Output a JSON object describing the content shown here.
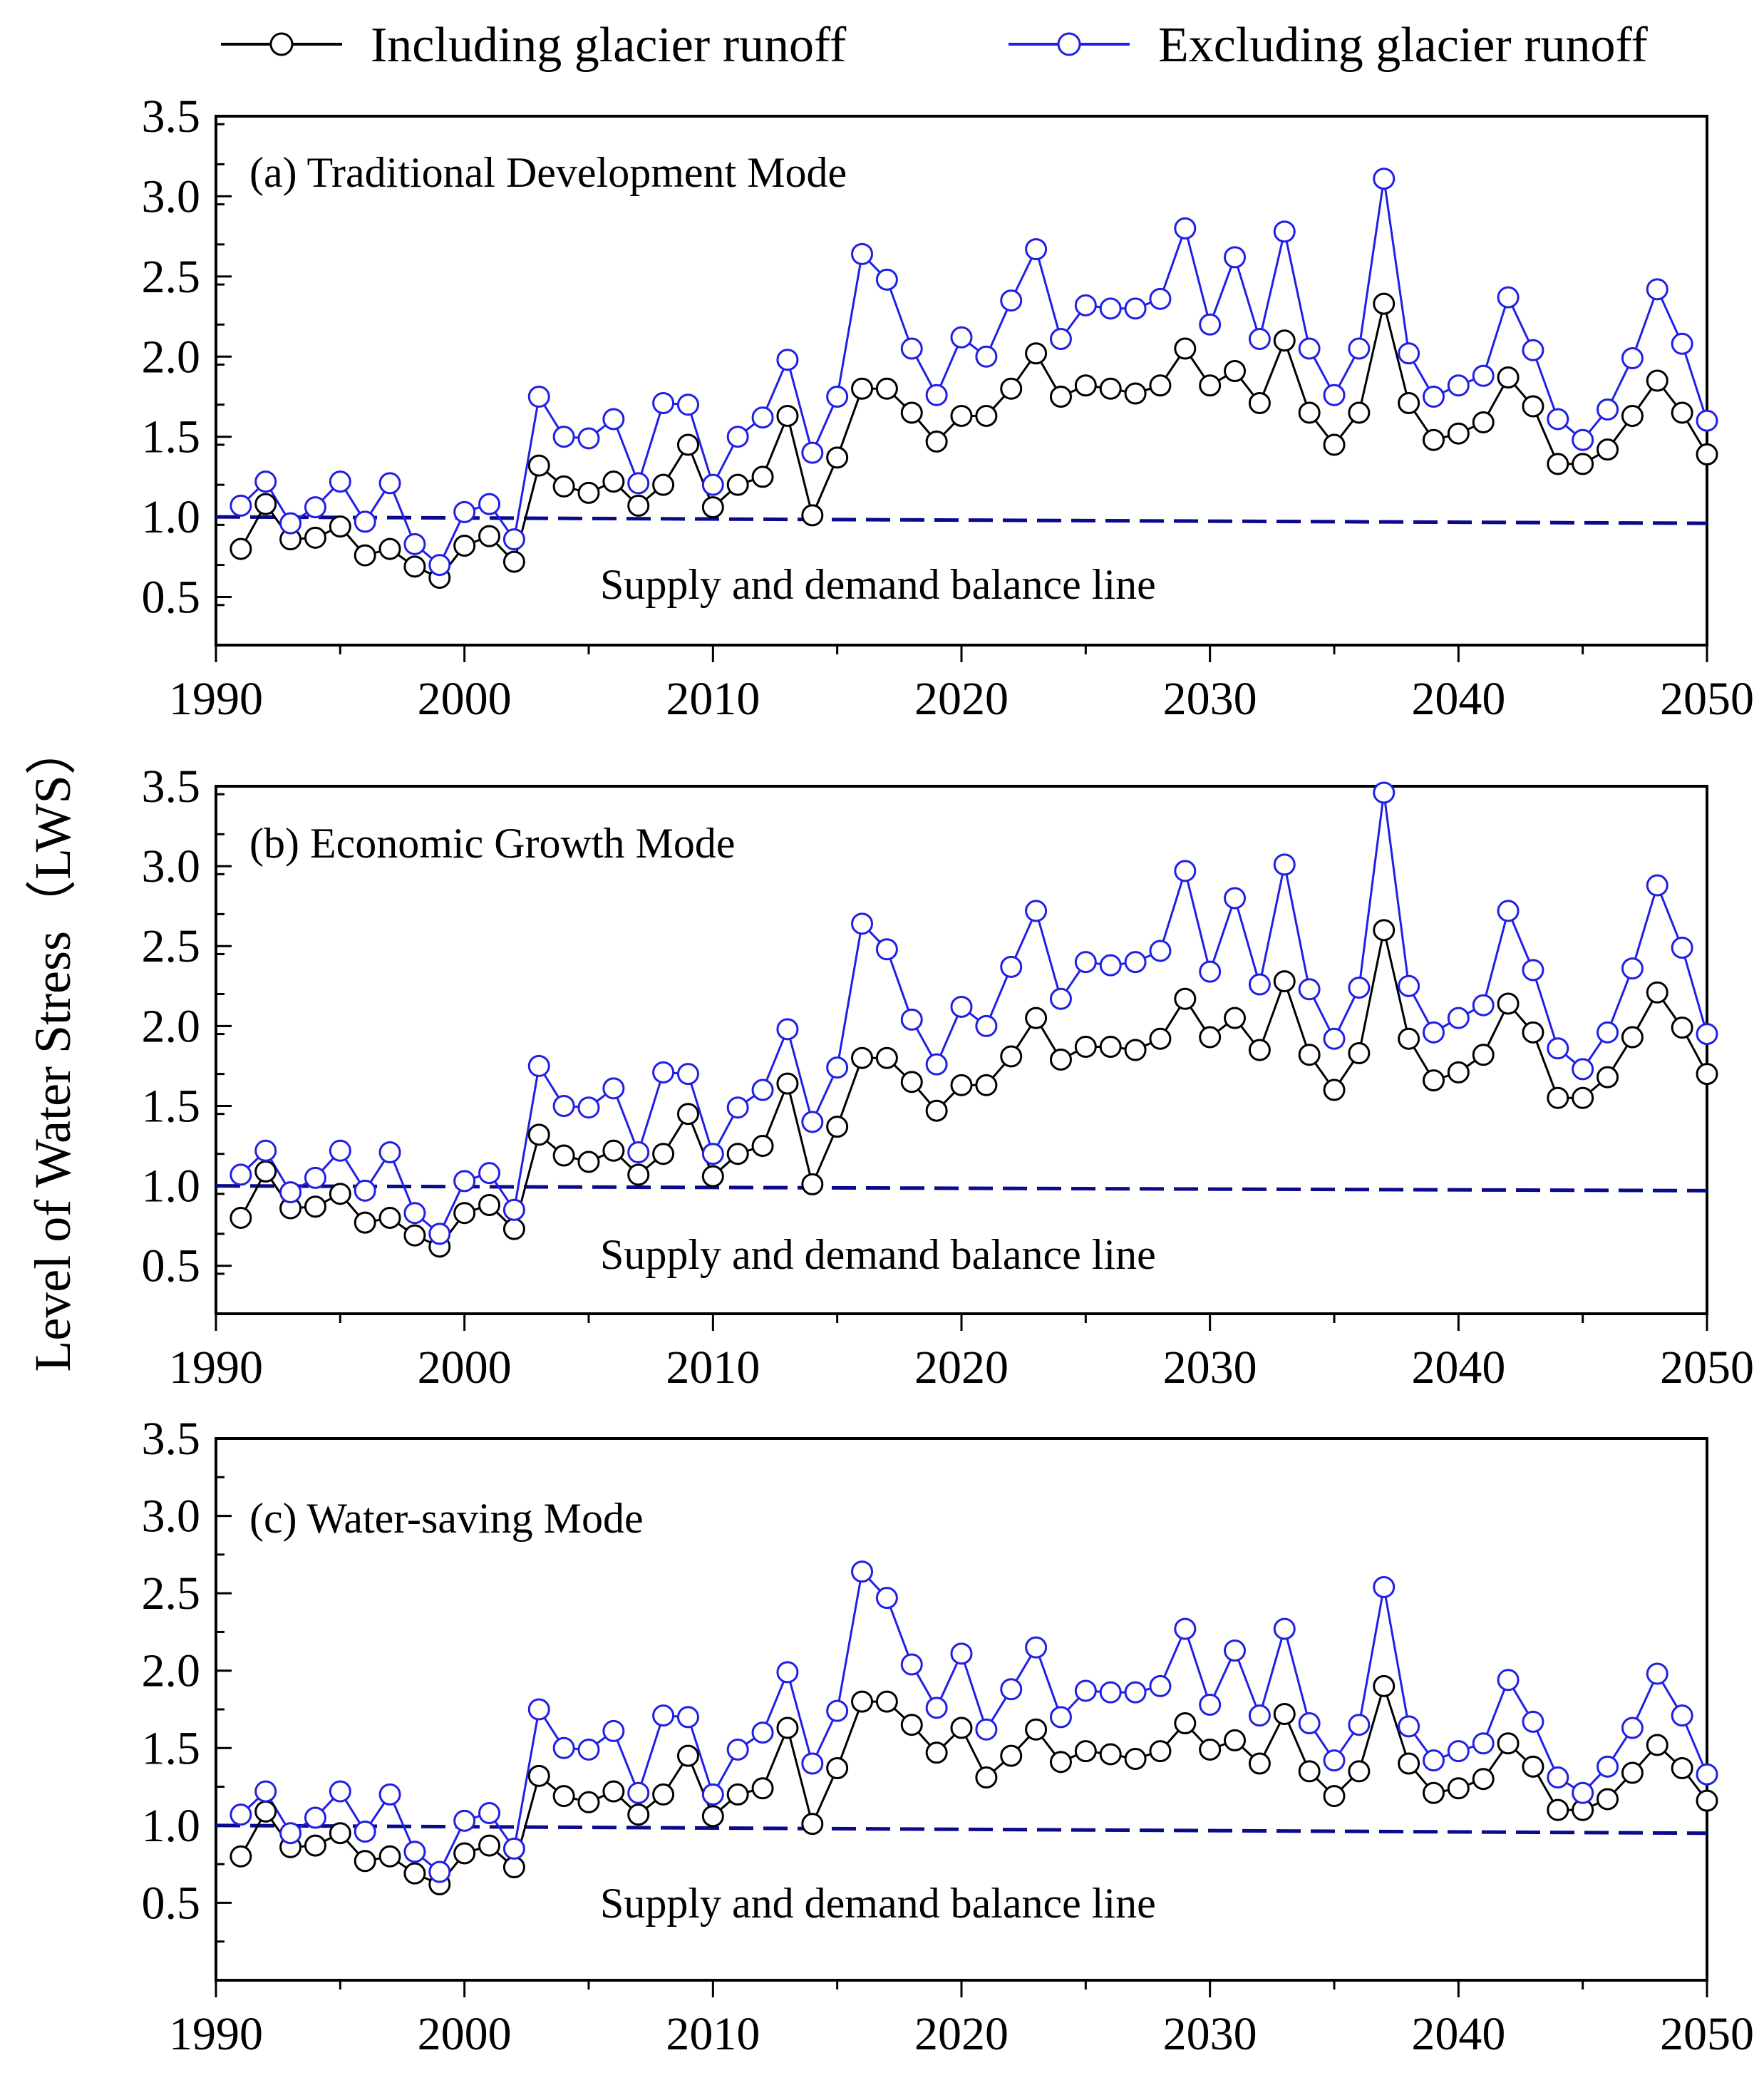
{
  "figure": {
    "ylabel": "Level of Water Stress（LWS）",
    "legend": [
      {
        "name": "Including glacier runoff",
        "color": "#000000"
      },
      {
        "name": "Excluding glacier runoff",
        "color": "#1f1fe6"
      }
    ],
    "balance_line_color": "#0a0a8c"
  },
  "chart_data": [
    {
      "type": "line",
      "title": "(a) Traditional Development Mode",
      "annotation": "Supply and demand balance line",
      "xlabel": "",
      "ylabel": "Level of Water Stress（LWS）",
      "xlim": [
        1990,
        2050
      ],
      "ylim": [
        0.2,
        3.5
      ],
      "x_ticks": [
        1990,
        2000,
        2010,
        2020,
        2030,
        2040,
        2050
      ],
      "y_ticks": [
        "0.5",
        "1.0",
        "1.5",
        "2.0",
        "2.5",
        "3.0",
        "3.5"
      ],
      "balance_line": {
        "start": 1.0,
        "end": 0.96
      },
      "x": [
        1991,
        1992,
        1993,
        1994,
        1995,
        1996,
        1997,
        1998,
        1999,
        2000,
        2001,
        2002,
        2003,
        2004,
        2005,
        2006,
        2007,
        2008,
        2009,
        2010,
        2011,
        2012,
        2013,
        2014,
        2015,
        2016,
        2017,
        2018,
        2019,
        2020,
        2021,
        2022,
        2023,
        2024,
        2025,
        2026,
        2027,
        2028,
        2029,
        2030,
        2031,
        2032,
        2033,
        2034,
        2035,
        2036,
        2037,
        2038,
        2039,
        2040,
        2041,
        2042,
        2043,
        2044,
        2045,
        2046,
        2047,
        2048,
        2049,
        2050
      ],
      "series": [
        {
          "name": "Including glacier runoff",
          "values": [
            0.8,
            1.08,
            0.86,
            0.87,
            0.94,
            0.76,
            0.8,
            0.69,
            0.62,
            0.82,
            0.88,
            0.72,
            1.32,
            1.19,
            1.15,
            1.22,
            1.07,
            1.2,
            1.45,
            1.06,
            1.2,
            1.25,
            1.63,
            1.01,
            1.37,
            1.8,
            1.8,
            1.65,
            1.47,
            1.63,
            1.63,
            1.8,
            2.02,
            1.75,
            1.82,
            1.8,
            1.77,
            1.82,
            2.05,
            1.82,
            1.91,
            1.71,
            2.1,
            1.65,
            1.45,
            1.65,
            2.33,
            1.71,
            1.48,
            1.52,
            1.59,
            1.87,
            1.69,
            1.33,
            1.33,
            1.42,
            1.63,
            1.85,
            1.65,
            1.39
          ]
        },
        {
          "name": "Excluding glacier runoff",
          "values": [
            1.07,
            1.22,
            0.96,
            1.06,
            1.22,
            0.97,
            1.21,
            0.83,
            0.7,
            1.03,
            1.08,
            0.86,
            1.75,
            1.5,
            1.49,
            1.61,
            1.21,
            1.71,
            1.7,
            1.2,
            1.5,
            1.62,
            1.98,
            1.4,
            1.75,
            2.64,
            2.48,
            2.05,
            1.76,
            2.12,
            2.0,
            2.35,
            2.67,
            2.11,
            2.32,
            2.3,
            2.3,
            2.36,
            2.8,
            2.2,
            2.62,
            2.11,
            2.78,
            2.05,
            1.76,
            2.05,
            3.11,
            2.02,
            1.75,
            1.82,
            1.88,
            2.37,
            2.04,
            1.61,
            1.48,
            1.67,
            1.99,
            2.42,
            2.08,
            1.6
          ]
        }
      ]
    },
    {
      "type": "line",
      "title": "(b)  Economic Growth Mode",
      "annotation": "Supply and demand balance line",
      "xlabel": "",
      "ylabel": "Level of Water Stress（LWS）",
      "xlim": [
        1990,
        2050
      ],
      "ylim": [
        0.2,
        3.5
      ],
      "x_ticks": [
        1990,
        2000,
        2010,
        2020,
        2030,
        2040,
        2050
      ],
      "y_ticks": [
        "0.5",
        "1.0",
        "1.5",
        "2.0",
        "2.5",
        "3.0",
        "3.5"
      ],
      "balance_line": {
        "start": 1.0,
        "end": 0.97
      },
      "x": [
        1991,
        1992,
        1993,
        1994,
        1995,
        1996,
        1997,
        1998,
        1999,
        2000,
        2001,
        2002,
        2003,
        2004,
        2005,
        2006,
        2007,
        2008,
        2009,
        2010,
        2011,
        2012,
        2013,
        2014,
        2015,
        2016,
        2017,
        2018,
        2019,
        2020,
        2021,
        2022,
        2023,
        2024,
        2025,
        2026,
        2027,
        2028,
        2029,
        2030,
        2031,
        2032,
        2033,
        2034,
        2035,
        2036,
        2037,
        2038,
        2039,
        2040,
        2041,
        2042,
        2043,
        2044,
        2045,
        2046,
        2047,
        2048,
        2049,
        2050
      ],
      "series": [
        {
          "name": "Including glacier runoff",
          "values": [
            0.8,
            1.09,
            0.86,
            0.87,
            0.95,
            0.77,
            0.8,
            0.69,
            0.62,
            0.83,
            0.88,
            0.73,
            1.32,
            1.19,
            1.15,
            1.22,
            1.07,
            1.2,
            1.45,
            1.06,
            1.2,
            1.25,
            1.64,
            1.01,
            1.37,
            1.8,
            1.8,
            1.65,
            1.47,
            1.63,
            1.63,
            1.81,
            2.05,
            1.79,
            1.87,
            1.87,
            1.85,
            1.92,
            2.17,
            1.93,
            2.05,
            1.85,
            2.28,
            1.82,
            1.6,
            1.83,
            2.6,
            1.92,
            1.66,
            1.71,
            1.82,
            2.14,
            1.96,
            1.55,
            1.55,
            1.68,
            1.93,
            2.21,
            1.99,
            1.7
          ]
        },
        {
          "name": "Excluding glacier runoff",
          "values": [
            1.07,
            1.22,
            0.96,
            1.05,
            1.22,
            0.97,
            1.21,
            0.83,
            0.7,
            1.03,
            1.08,
            0.85,
            1.75,
            1.5,
            1.49,
            1.61,
            1.21,
            1.71,
            1.7,
            1.2,
            1.49,
            1.6,
            1.98,
            1.4,
            1.74,
            2.64,
            2.48,
            2.04,
            1.76,
            2.12,
            2.0,
            2.37,
            2.72,
            2.17,
            2.4,
            2.38,
            2.4,
            2.47,
            2.97,
            2.34,
            2.8,
            2.26,
            3.01,
            2.23,
            1.92,
            2.24,
            3.46,
            2.25,
            1.96,
            2.05,
            2.13,
            2.72,
            2.35,
            1.86,
            1.73,
            1.96,
            2.36,
            2.88,
            2.49,
            1.95
          ]
        }
      ]
    },
    {
      "type": "line",
      "title": "(c) Water-saving Mode",
      "annotation": "Supply and demand balance line",
      "xlabel": "",
      "ylabel": "Level of Water Stress（LWS）",
      "xlim": [
        1990,
        2050
      ],
      "ylim": [
        0.0,
        3.5
      ],
      "x_ticks": [
        1990,
        2000,
        2010,
        2020,
        2030,
        2040,
        2050
      ],
      "y_ticks": [
        "0.5",
        "1.0",
        "1.5",
        "2.0",
        "2.5",
        "3.0",
        "3.5"
      ],
      "balance_line": {
        "start": 1.0,
        "end": 0.95
      },
      "x": [
        1991,
        1992,
        1993,
        1994,
        1995,
        1996,
        1997,
        1998,
        1999,
        2000,
        2001,
        2002,
        2003,
        2004,
        2005,
        2006,
        2007,
        2008,
        2009,
        2010,
        2011,
        2012,
        2013,
        2014,
        2015,
        2016,
        2017,
        2018,
        2019,
        2020,
        2021,
        2022,
        2023,
        2024,
        2025,
        2026,
        2027,
        2028,
        2029,
        2030,
        2031,
        2032,
        2033,
        2034,
        2035,
        2036,
        2037,
        2038,
        2039,
        2040,
        2041,
        2042,
        2043,
        2044,
        2045,
        2046,
        2047,
        2048,
        2049,
        2050
      ],
      "series": [
        {
          "name": "Including glacier runoff",
          "values": [
            0.8,
            1.09,
            0.86,
            0.87,
            0.95,
            0.77,
            0.8,
            0.69,
            0.62,
            0.82,
            0.87,
            0.73,
            1.32,
            1.19,
            1.15,
            1.22,
            1.07,
            1.2,
            1.45,
            1.06,
            1.2,
            1.24,
            1.63,
            1.01,
            1.37,
            1.8,
            1.8,
            1.65,
            1.47,
            1.63,
            1.31,
            1.45,
            1.62,
            1.41,
            1.48,
            1.46,
            1.43,
            1.48,
            1.66,
            1.49,
            1.55,
            1.4,
            1.72,
            1.35,
            1.19,
            1.35,
            1.9,
            1.4,
            1.21,
            1.24,
            1.3,
            1.53,
            1.38,
            1.1,
            1.1,
            1.17,
            1.34,
            1.52,
            1.37,
            1.16
          ]
        },
        {
          "name": "Excluding glacier runoff",
          "values": [
            1.07,
            1.22,
            0.95,
            1.05,
            1.22,
            0.96,
            1.2,
            0.83,
            0.7,
            1.03,
            1.08,
            0.85,
            1.75,
            1.5,
            1.49,
            1.61,
            1.21,
            1.71,
            1.7,
            1.2,
            1.49,
            1.6,
            1.99,
            1.4,
            1.74,
            2.64,
            2.47,
            2.04,
            1.76,
            2.11,
            1.62,
            1.88,
            2.15,
            1.7,
            1.87,
            1.86,
            1.86,
            1.9,
            2.27,
            1.78,
            2.13,
            1.71,
            2.27,
            1.66,
            1.42,
            1.65,
            2.54,
            1.64,
            1.42,
            1.48,
            1.53,
            1.94,
            1.67,
            1.31,
            1.21,
            1.38,
            1.63,
            1.98,
            1.71,
            1.33
          ]
        }
      ]
    }
  ]
}
